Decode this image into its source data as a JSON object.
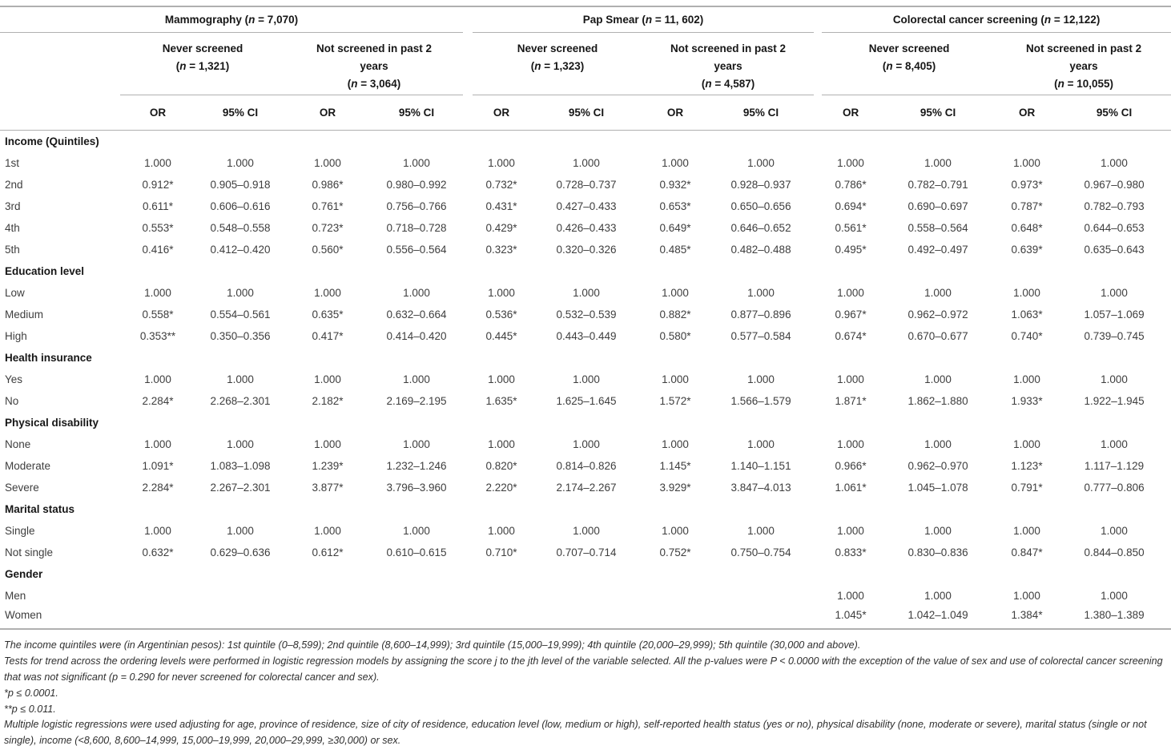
{
  "colors": {
    "rule": "#b0b0b0"
  },
  "table": {
    "or_header": "OR",
    "ci_header": "95% CI",
    "groups": [
      {
        "title": "Mammography (n = 7,070)",
        "subgroups": [
          {
            "label": "Never screened",
            "n": "(n = 1,321)"
          },
          {
            "label": "Not screened in past 2 years",
            "n": "(n = 3,064)"
          }
        ]
      },
      {
        "title": "Pap Smear (n = 11, 602)",
        "subgroups": [
          {
            "label": "Never screened",
            "n": "(n = 1,323)"
          },
          {
            "label": "Not screened in past 2 years",
            "n": "(n = 4,587)"
          }
        ]
      },
      {
        "title": "Colorectal cancer screening (n = 12,122)",
        "subgroups": [
          {
            "label": "Never screened",
            "n": "(n = 8,405)"
          },
          {
            "label": "Not screened in past 2 years",
            "n": "(n = 10,055)"
          }
        ]
      }
    ],
    "sections": [
      {
        "label": "Income (Quintiles)",
        "rows": [
          {
            "label": "1st",
            "values": [
              "1.000",
              "1.000",
              "1.000",
              "1.000",
              "1.000",
              "1.000",
              "1.000",
              "1.000",
              "1.000",
              "1.000",
              "1.000",
              "1.000"
            ]
          },
          {
            "label": "2nd",
            "values": [
              "0.912*",
              "0.905–0.918",
              "0.986*",
              "0.980–0.992",
              "0.732*",
              "0.728–0.737",
              "0.932*",
              "0.928–0.937",
              "0.786*",
              "0.782–0.791",
              "0.973*",
              "0.967–0.980"
            ]
          },
          {
            "label": "3rd",
            "values": [
              "0.611*",
              "0.606–0.616",
              "0.761*",
              "0.756–0.766",
              "0.431*",
              "0.427–0.433",
              "0.653*",
              "0.650–0.656",
              "0.694*",
              "0.690–0.697",
              "0.787*",
              "0.782–0.793"
            ]
          },
          {
            "label": "4th",
            "values": [
              "0.553*",
              "0.548–0.558",
              "0.723*",
              "0.718–0.728",
              "0.429*",
              "0.426–0.433",
              "0.649*",
              "0.646–0.652",
              "0.561*",
              "0.558–0.564",
              "0.648*",
              "0.644–0.653"
            ]
          },
          {
            "label": "5th",
            "values": [
              "0.416*",
              "0.412–0.420",
              "0.560*",
              "0.556–0.564",
              "0.323*",
              "0.320–0.326",
              "0.485*",
              "0.482–0.488",
              "0.495*",
              "0.492–0.497",
              "0.639*",
              "0.635–0.643"
            ]
          }
        ]
      },
      {
        "label": "Education level",
        "rows": [
          {
            "label": "Low",
            "values": [
              "1.000",
              "1.000",
              "1.000",
              "1.000",
              "1.000",
              "1.000",
              "1.000",
              "1.000",
              "1.000",
              "1.000",
              "1.000",
              "1.000"
            ]
          },
          {
            "label": "Medium",
            "values": [
              "0.558*",
              "0.554–0.561",
              "0.635*",
              "0.632–0.664",
              "0.536*",
              "0.532–0.539",
              "0.882*",
              "0.877–0.896",
              "0.967*",
              "0.962–0.972",
              "1.063*",
              "1.057–1.069"
            ]
          },
          {
            "label": "High",
            "values": [
              "0.353**",
              "0.350–0.356",
              "0.417*",
              "0.414–0.420",
              "0.445*",
              "0.443–0.449",
              "0.580*",
              "0.577–0.584",
              "0.674*",
              "0.670–0.677",
              "0.740*",
              "0.739–0.745"
            ]
          }
        ]
      },
      {
        "label": "Health insurance",
        "rows": [
          {
            "label": "Yes",
            "values": [
              "1.000",
              "1.000",
              "1.000",
              "1.000",
              "1.000",
              "1.000",
              "1.000",
              "1.000",
              "1.000",
              "1.000",
              "1.000",
              "1.000"
            ]
          },
          {
            "label": "No",
            "values": [
              "2.284*",
              "2.268–2.301",
              "2.182*",
              "2.169–2.195",
              "1.635*",
              "1.625–1.645",
              "1.572*",
              "1.566–1.579",
              "1.871*",
              "1.862–1.880",
              "1.933*",
              "1.922–1.945"
            ]
          }
        ]
      },
      {
        "label": "Physical disability",
        "rows": [
          {
            "label": "None",
            "values": [
              "1.000",
              "1.000",
              "1.000",
              "1.000",
              "1.000",
              "1.000",
              "1.000",
              "1.000",
              "1.000",
              "1.000",
              "1.000",
              "1.000"
            ]
          },
          {
            "label": "Moderate",
            "values": [
              "1.091*",
              "1.083–1.098",
              "1.239*",
              "1.232–1.246",
              "0.820*",
              "0.814–0.826",
              "1.145*",
              "1.140–1.151",
              "0.966*",
              "0.962–0.970",
              "1.123*",
              "1.117–1.129"
            ]
          },
          {
            "label": "Severe",
            "values": [
              "2.284*",
              "2.267–2.301",
              "3.877*",
              "3.796–3.960",
              "2.220*",
              "2.174–2.267",
              "3.929*",
              "3.847–4.013",
              "1.061*",
              "1.045–1.078",
              "0.791*",
              "0.777–0.806"
            ]
          }
        ]
      },
      {
        "label": "Marital status",
        "rows": [
          {
            "label": "Single",
            "values": [
              "1.000",
              "1.000",
              "1.000",
              "1.000",
              "1.000",
              "1.000",
              "1.000",
              "1.000",
              "1.000",
              "1.000",
              "1.000",
              "1.000"
            ]
          },
          {
            "label": "Not single",
            "values": [
              "0.632*",
              "0.629–0.636",
              "0.612*",
              "0.610–0.615",
              "0.710*",
              "0.707–0.714",
              "0.752*",
              "0.750–0.754",
              "0.833*",
              "0.830–0.836",
              "0.847*",
              "0.844–0.850"
            ]
          }
        ]
      },
      {
        "label": "Gender",
        "rows": [
          {
            "label": "Men",
            "values": [
              "",
              "",
              "",
              "",
              "",
              "",
              "",
              "",
              "1.000",
              "1.000",
              "1.000",
              "1.000"
            ]
          },
          {
            "label": "Women",
            "values": [
              "",
              "",
              "",
              "",
              "",
              "",
              "",
              "",
              "1.045*",
              "1.042–1.049",
              "1.384*",
              "1.380–1.389"
            ]
          }
        ]
      }
    ]
  },
  "footnotes": [
    "The income quintiles were (in Argentinian pesos): 1st quintile (0–8,599); 2nd quintile (8,600–14,999); 3rd quintile (15,000–19,999); 4th quintile (20,000–29,999); 5th quintile (30,000 and above).",
    "Tests for trend across the ordering levels were performed in logistic regression models by assigning the score j to the jth level of the variable selected. All the p-values were P < 0.0000 with the exception of the value of sex and use of colorectal cancer screening that was not significant (p = 0.290 for never screened for colorectal cancer and sex).",
    "*p ≤ 0.0001.",
    "**p ≤ 0.011.",
    "Multiple logistic regressions were used adjusting for age, province of residence, size of city of residence, education level (low, medium or high), self-reported health status (yes or no), physical disability (none, moderate or severe), marital status (single or not single), income (<8,600, 8,600–14,999, 15,000–19,999, 20,000–29,999, ≥30,000) or sex."
  ]
}
